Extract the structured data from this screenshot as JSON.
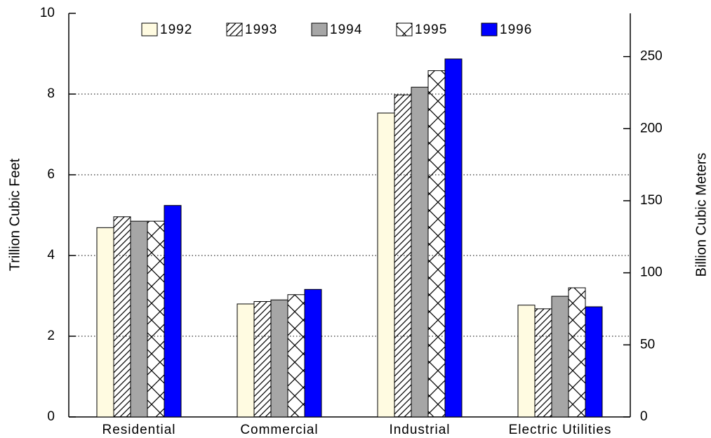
{
  "chart_data": {
    "type": "bar",
    "categories": [
      "Residential",
      "Commercial",
      "Industrial",
      "Electric Utilities"
    ],
    "series": [
      {
        "name": "1992",
        "color": "#fffbe1",
        "values": [
          4.69,
          2.8,
          7.53,
          2.77
        ]
      },
      {
        "name": "1993",
        "color": "#ffffff",
        "pattern": "diagonal",
        "values": [
          4.96,
          2.86,
          7.98,
          2.68
        ]
      },
      {
        "name": "1994",
        "color": "#a6a6a6",
        "values": [
          4.85,
          2.9,
          8.17,
          2.99
        ]
      },
      {
        "name": "1995",
        "color": "#ffffff",
        "pattern": "cross",
        "values": [
          4.85,
          3.03,
          8.58,
          3.2
        ]
      },
      {
        "name": "1996",
        "color": "#0000ff",
        "values": [
          5.24,
          3.16,
          8.87,
          2.73
        ]
      }
    ],
    "y_label": "Trillion Cubic Feet",
    "y2_label": "Billion Cubic Meters",
    "ylim": [
      0,
      10
    ],
    "yticks": [
      0,
      2,
      4,
      6,
      8,
      10
    ],
    "y2lim": [
      0,
      280
    ],
    "y2ticks": [
      0,
      50,
      100,
      150,
      200,
      250
    ],
    "grid": true,
    "legend": "top"
  }
}
